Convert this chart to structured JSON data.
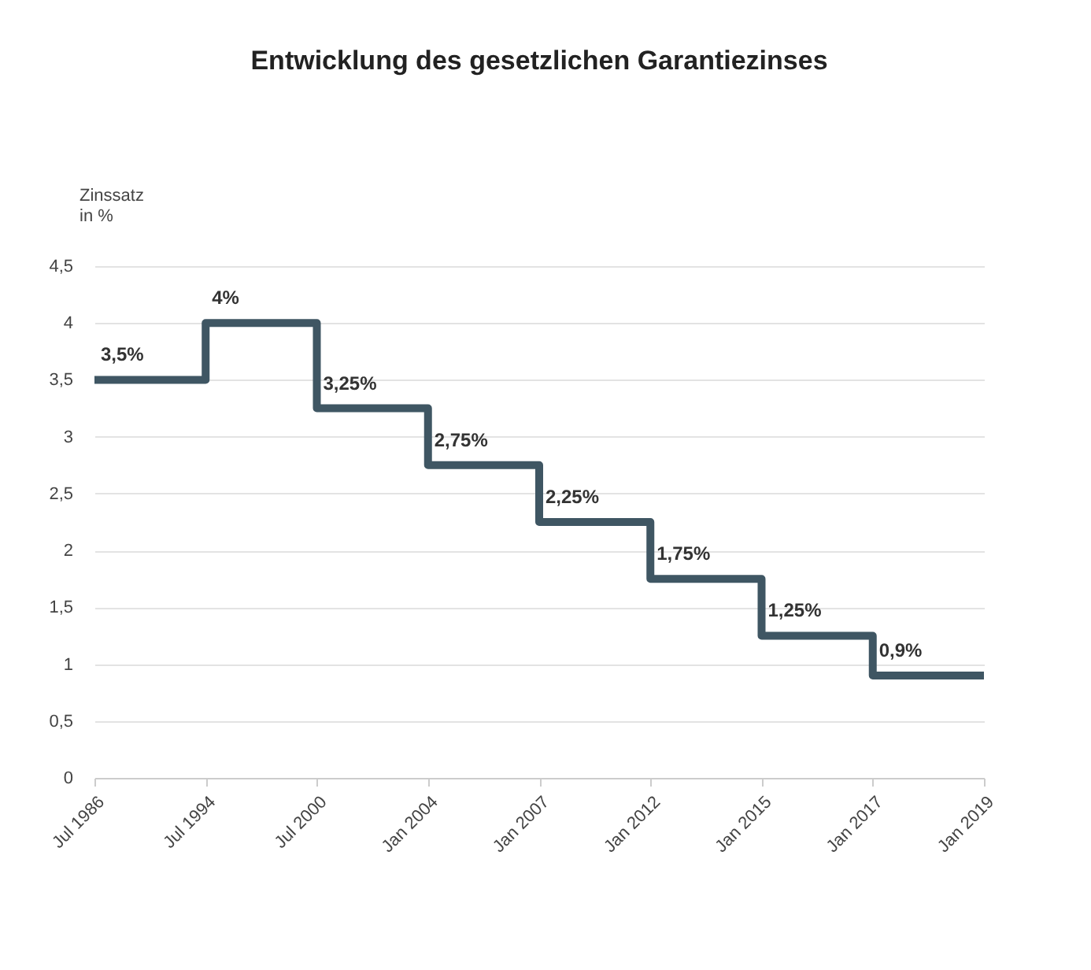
{
  "chart_data": {
    "type": "step",
    "title": "Entwicklung des gesetzlichen Garantiezinses",
    "ylabel": "Zinssatz\nin %",
    "categories": [
      "Jul 1986",
      "Jul 1994",
      "Jul 2000",
      "Jan 2004",
      "Jan 2007",
      "Jan 2012",
      "Jan 2015",
      "Jan 2017",
      "Jan 2019"
    ],
    "values": [
      3.5,
      4,
      3.25,
      2.75,
      2.25,
      1.75,
      1.25,
      0.9,
      0.9
    ],
    "value_labels": [
      "3,5%",
      "4%",
      "3,25%",
      "2,75%",
      "2,25%",
      "1,75%",
      "1,25%",
      "0,9%",
      null
    ],
    "color": "#3f5663",
    "ylim": [
      0,
      4.5
    ],
    "yticks": [
      0,
      {
        "value": 0.5,
        "label": "0,5"
      },
      1,
      {
        "value": 1.5,
        "label": "1,5"
      },
      2,
      {
        "value": 2.5,
        "label": "2,5"
      },
      3,
      {
        "value": 3.5,
        "label": "3,5"
      },
      4,
      {
        "value": 4.5,
        "label": "4,5"
      }
    ],
    "grid": "y",
    "marker": "none",
    "line_style": "solid"
  }
}
